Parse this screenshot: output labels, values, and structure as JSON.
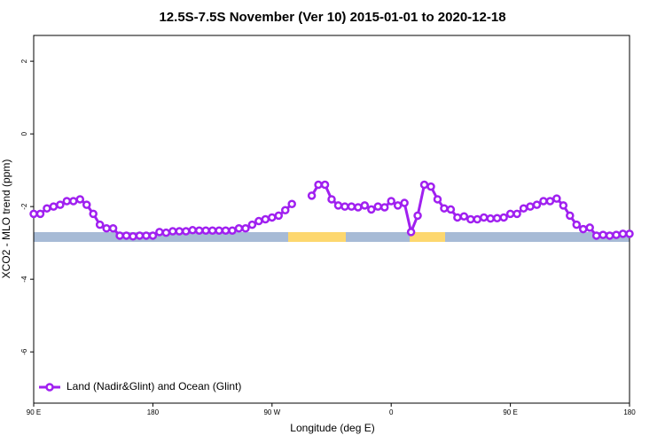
{
  "chart_data": {
    "type": "line",
    "title": "12.5S-7.5S November (Ver 10)   2015-01-01 to 2020-12-18",
    "x_label": "Longitude (deg E)",
    "y_label": "XCO2 - MLO trend (ppm)",
    "x": [
      90,
      95,
      100,
      105,
      110,
      115,
      120,
      125,
      130,
      135,
      140,
      145,
      150,
      155,
      160,
      165,
      170,
      175,
      180,
      185,
      190,
      195,
      200,
      205,
      210,
      215,
      220,
      225,
      230,
      235,
      240,
      245,
      250,
      255,
      260,
      265,
      270,
      275,
      280,
      285,
      290,
      295,
      300,
      305,
      310,
      315,
      320,
      325,
      330,
      335,
      340,
      345,
      350,
      355,
      360,
      365,
      370,
      375,
      380,
      385,
      390,
      395,
      400,
      405,
      410,
      415,
      420,
      425,
      430,
      435,
      440,
      445,
      450,
      455,
      460,
      465,
      470,
      475,
      480,
      485,
      490,
      495,
      500,
      505,
      510,
      515,
      520,
      525,
      530,
      535,
      540
    ],
    "series": [
      {
        "name": "Land (Nadir&Glint) and Ocean (Glint)",
        "color": "#a020f0",
        "values": [
          -2.2,
          -2.2,
          -2.05,
          -2.0,
          -1.95,
          -1.85,
          -1.85,
          -1.8,
          -1.95,
          -2.2,
          -2.5,
          -2.6,
          -2.6,
          -2.8,
          -2.8,
          -2.82,
          -2.8,
          -2.8,
          -2.8,
          -2.7,
          -2.72,
          -2.68,
          -2.68,
          -2.68,
          -2.65,
          -2.66,
          -2.66,
          -2.66,
          -2.66,
          -2.66,
          -2.66,
          -2.6,
          -2.6,
          -2.5,
          -2.4,
          -2.35,
          -2.3,
          -2.25,
          -2.1,
          -1.93,
          null,
          null,
          -1.7,
          -1.4,
          -1.4,
          -1.8,
          -1.97,
          -2.0,
          -2.0,
          -2.02,
          -1.97,
          -2.08,
          -2.0,
          -2.02,
          -1.85,
          -1.97,
          -1.9,
          -2.7,
          -2.25,
          -1.4,
          -1.45,
          -1.8,
          -2.05,
          -2.08,
          -2.3,
          -2.27,
          -2.35,
          -2.35,
          -2.3,
          -2.33,
          -2.32,
          -2.3,
          -2.2,
          -2.2,
          -2.05,
          -2.0,
          -1.95,
          -1.85,
          -1.85,
          -1.78,
          -1.97,
          -2.25,
          -2.5,
          -2.62,
          -2.58,
          -2.8,
          -2.78,
          -2.8,
          -2.78,
          -2.75,
          -2.75
        ]
      }
    ],
    "xlim": [
      90,
      540
    ],
    "xticks": [
      {
        "value": 90,
        "label": "90 E"
      },
      180,
      {
        "value": 270,
        "label": "90 W"
      },
      {
        "value": 360,
        "label": "0"
      },
      {
        "value": 450,
        "label": "90 E"
      },
      {
        "value": 540,
        "label": "180"
      }
    ],
    "ylim": [
      -7.41,
      2.71
    ],
    "yticks": [
      -6,
      -4,
      -2,
      0,
      2
    ],
    "legend": "bottom-left"
  }
}
